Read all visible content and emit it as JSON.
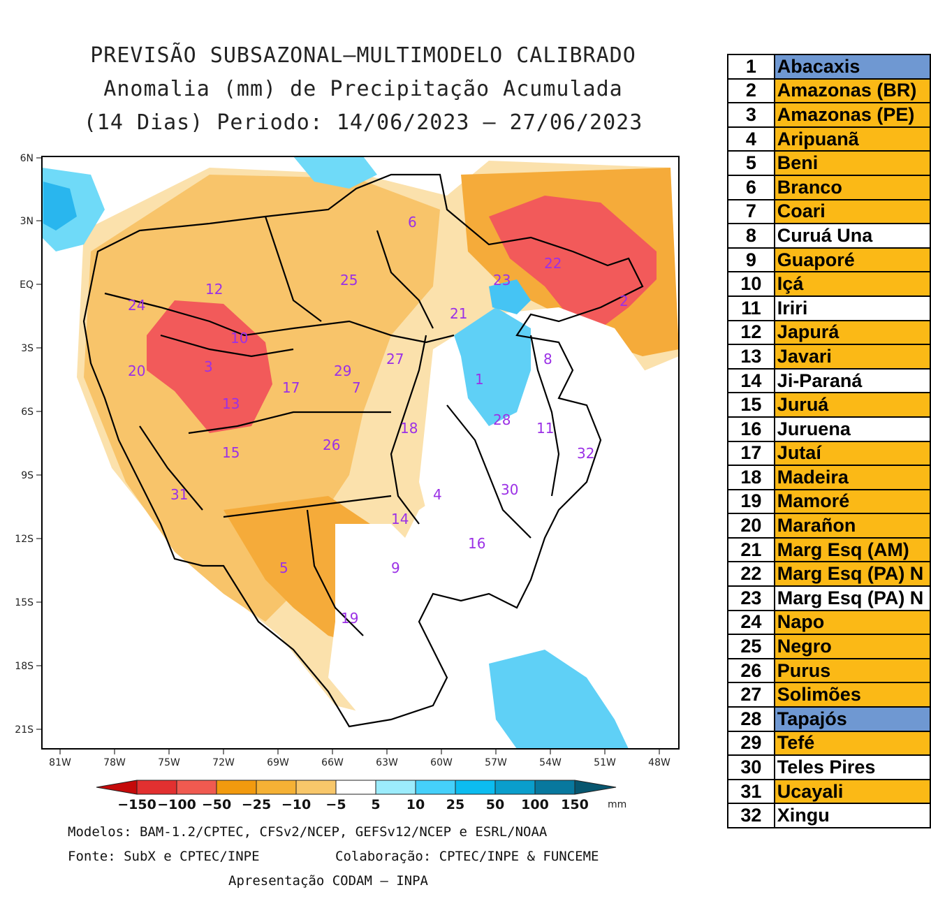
{
  "title": {
    "line1": "PREVISÃO SUBSAZONAL—MULTIMODELO CALIBRADO",
    "line2": "Anomalia (mm) de Precipitação Acumulada",
    "line3": "(14 Dias) Periodo: 14/06/2023 — 27/06/2023"
  },
  "axes": {
    "lat_labels": [
      "6N",
      "3N",
      "EQ",
      "3S",
      "6S",
      "9S",
      "12S",
      "15S",
      "18S",
      "21S"
    ],
    "lon_labels": [
      "81W",
      "78W",
      "75W",
      "72W",
      "69W",
      "66W",
      "63W",
      "60W",
      "57W",
      "54W",
      "51W",
      "48W"
    ]
  },
  "colorbar": {
    "labels": [
      "−150",
      "−100",
      "−50",
      "−25",
      "−10",
      "−5",
      "5",
      "10",
      "25",
      "50",
      "100",
      "150"
    ],
    "unit": "mm",
    "colors": [
      "#c40a0a",
      "#e23030",
      "#f05a50",
      "#f29a0e",
      "#f5b135",
      "#f8c76a",
      "#fbe1ac",
      "#ffffff",
      "#9cecfc",
      "#45d0fa",
      "#0cbcf0",
      "#0a9ecc",
      "#08789e",
      "#07566f"
    ]
  },
  "map": {
    "basin_labels": [
      "1",
      "2",
      "3",
      "4",
      "5",
      "6",
      "7",
      "8",
      "9",
      "10",
      "11",
      "12",
      "13",
      "14",
      "15",
      "16",
      "17",
      "18",
      "19",
      "20",
      "21",
      "22",
      "23",
      "24",
      "25",
      "26",
      "27",
      "28",
      "29",
      "30",
      "31",
      "32"
    ]
  },
  "footer": {
    "models": "Modelos: BAM-1.2/CPTEC, CFSv2/NCEP, GEFSv12/NCEP e ESRL/NOAA",
    "source": "Fonte: SubX e CPTEC/INPE",
    "collab": "Colaboração: CPTEC/INPE & FUNCEME",
    "presentation": "Apresentação CODAM – INPA"
  },
  "legend": {
    "rows": [
      {
        "num": "1",
        "name": "Abacaxis",
        "color": "#6f98d2"
      },
      {
        "num": "2",
        "name": "Amazonas (BR)",
        "color": "#fbb916"
      },
      {
        "num": "3",
        "name": "Amazonas (PE)",
        "color": "#fbb916"
      },
      {
        "num": "4",
        "name": "Aripuanã",
        "color": "#fbb916"
      },
      {
        "num": "5",
        "name": "Beni",
        "color": "#fbb916"
      },
      {
        "num": "6",
        "name": "Branco",
        "color": "#fbb916"
      },
      {
        "num": "7",
        "name": "Coari",
        "color": "#fbb916"
      },
      {
        "num": "8",
        "name": "Curuá Una",
        "color": "#ffffff"
      },
      {
        "num": "9",
        "name": "Guaporé",
        "color": "#fbb916"
      },
      {
        "num": "10",
        "name": "Içá",
        "color": "#fbb916"
      },
      {
        "num": "11",
        "name": "Iriri",
        "color": "#ffffff"
      },
      {
        "num": "12",
        "name": "Japurá",
        "color": "#fbb916"
      },
      {
        "num": "13",
        "name": "Javari",
        "color": "#fbb916"
      },
      {
        "num": "14",
        "name": "Ji-Paraná",
        "color": "#ffffff"
      },
      {
        "num": "15",
        "name": "Juruá",
        "color": "#fbb916"
      },
      {
        "num": "16",
        "name": "Juruena",
        "color": "#ffffff"
      },
      {
        "num": "17",
        "name": "Jutaí",
        "color": "#fbb916"
      },
      {
        "num": "18",
        "name": "Madeira",
        "color": "#fbb916"
      },
      {
        "num": "19",
        "name": "Mamoré",
        "color": "#fbb916"
      },
      {
        "num": "20",
        "name": "Marañon",
        "color": "#fbb916"
      },
      {
        "num": "21",
        "name": "Marg Esq (AM)",
        "color": "#fbb916"
      },
      {
        "num": "22",
        "name": "Marg Esq (PA) N",
        "color": "#fbb916"
      },
      {
        "num": "23",
        "name": "Marg Esq (PA) N",
        "color": "#ffffff"
      },
      {
        "num": "24",
        "name": "Napo",
        "color": "#fbb916"
      },
      {
        "num": "25",
        "name": "Negro",
        "color": "#fbb916"
      },
      {
        "num": "26",
        "name": "Purus",
        "color": "#fbb916"
      },
      {
        "num": "27",
        "name": "Solimões",
        "color": "#fbb916"
      },
      {
        "num": "28",
        "name": "Tapajós",
        "color": "#6f98d2"
      },
      {
        "num": "29",
        "name": "Tefé",
        "color": "#fbb916"
      },
      {
        "num": "30",
        "name": "Teles Pires",
        "color": "#ffffff"
      },
      {
        "num": "31",
        "name": "Ucayali",
        "color": "#fbb916"
      },
      {
        "num": "32",
        "name": "Xingu",
        "color": "#ffffff"
      }
    ]
  }
}
